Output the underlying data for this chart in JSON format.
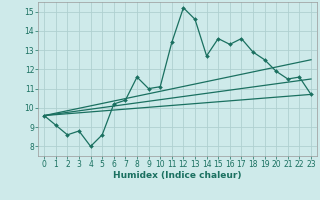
{
  "xlabel": "Humidex (Indice chaleur)",
  "ylabel": "",
  "background_color": "#ceeaea",
  "grid_color": "#afd0d0",
  "line_color": "#1a7060",
  "x": [
    0,
    1,
    2,
    3,
    4,
    5,
    6,
    7,
    8,
    9,
    10,
    11,
    12,
    13,
    14,
    15,
    16,
    17,
    18,
    19,
    20,
    21,
    22,
    23
  ],
  "y_main": [
    9.6,
    9.1,
    8.6,
    8.8,
    8.0,
    8.6,
    10.2,
    10.4,
    11.6,
    11.0,
    11.1,
    13.4,
    15.2,
    14.6,
    12.7,
    13.6,
    13.3,
    13.6,
    12.9,
    12.5,
    11.9,
    11.5,
    11.6,
    10.7
  ],
  "reg1_start": 9.6,
  "reg1_end": 12.5,
  "reg2_start": 9.6,
  "reg2_end": 11.5,
  "reg3_start": 9.6,
  "reg3_end": 10.7,
  "xlim": [
    -0.5,
    23.5
  ],
  "ylim": [
    7.5,
    15.5
  ],
  "yticks": [
    8,
    9,
    10,
    11,
    12,
    13,
    14,
    15
  ],
  "xticks": [
    0,
    1,
    2,
    3,
    4,
    5,
    6,
    7,
    8,
    9,
    10,
    11,
    12,
    13,
    14,
    15,
    16,
    17,
    18,
    19,
    20,
    21,
    22,
    23
  ],
  "tick_fontsize": 5.5,
  "xlabel_fontsize": 6.5
}
